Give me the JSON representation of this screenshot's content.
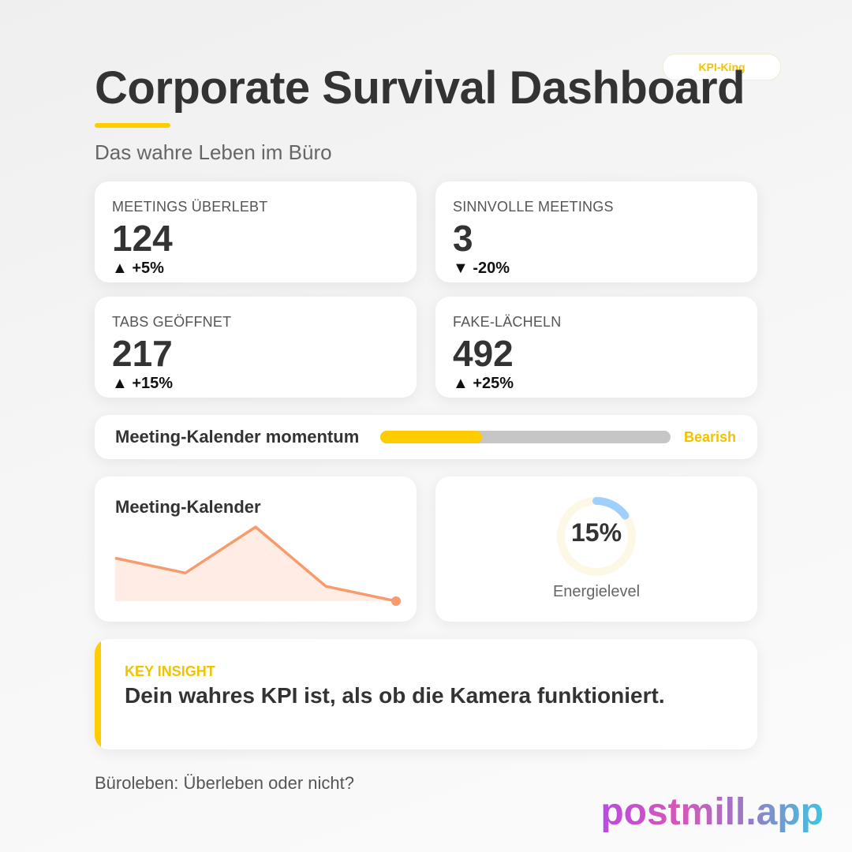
{
  "header": {
    "badge": "KPI-King",
    "title": "Corporate Survival Dashboard",
    "subtitle": "Das wahre Leben im Büro"
  },
  "kpis": [
    {
      "label": "MEETINGS ÜBERLEBT",
      "value": "124",
      "delta": "▲ +5%"
    },
    {
      "label": "SINNVOLLE MEETINGS",
      "value": "3",
      "delta": "▼ -20%"
    },
    {
      "label": "TABS GEÖFFNET",
      "value": "217",
      "delta": "▲ +15%"
    },
    {
      "label": "FAKE-LÄCHELN",
      "value": "492",
      "delta": "▲ +25%"
    }
  ],
  "momentum": {
    "label": "Meeting-Kalender momentum",
    "status": "Bearish",
    "level": 0.35
  },
  "chart": {
    "title": "Meeting-Kalender",
    "chart_data": {
      "type": "area",
      "values": [
        58,
        38,
        100,
        20,
        0
      ],
      "line_color": "#f89b6c",
      "fill_color": "#ffede5"
    }
  },
  "gauge": {
    "value_text": "15%",
    "percent": 15,
    "label": "Energielevel",
    "color": "#9fd0fb",
    "track_color": "#fdf8e6"
  },
  "insight": {
    "label": "KEY INSIGHT",
    "text": "Dein wahres KPI ist, als ob die Kamera funktioniert."
  },
  "footer": {
    "text": "Büroleben: Überleben oder nicht?",
    "brand": "postmill.app"
  },
  "colors": {
    "accent": "#ffcc00",
    "accent_text": "#f2c200"
  }
}
